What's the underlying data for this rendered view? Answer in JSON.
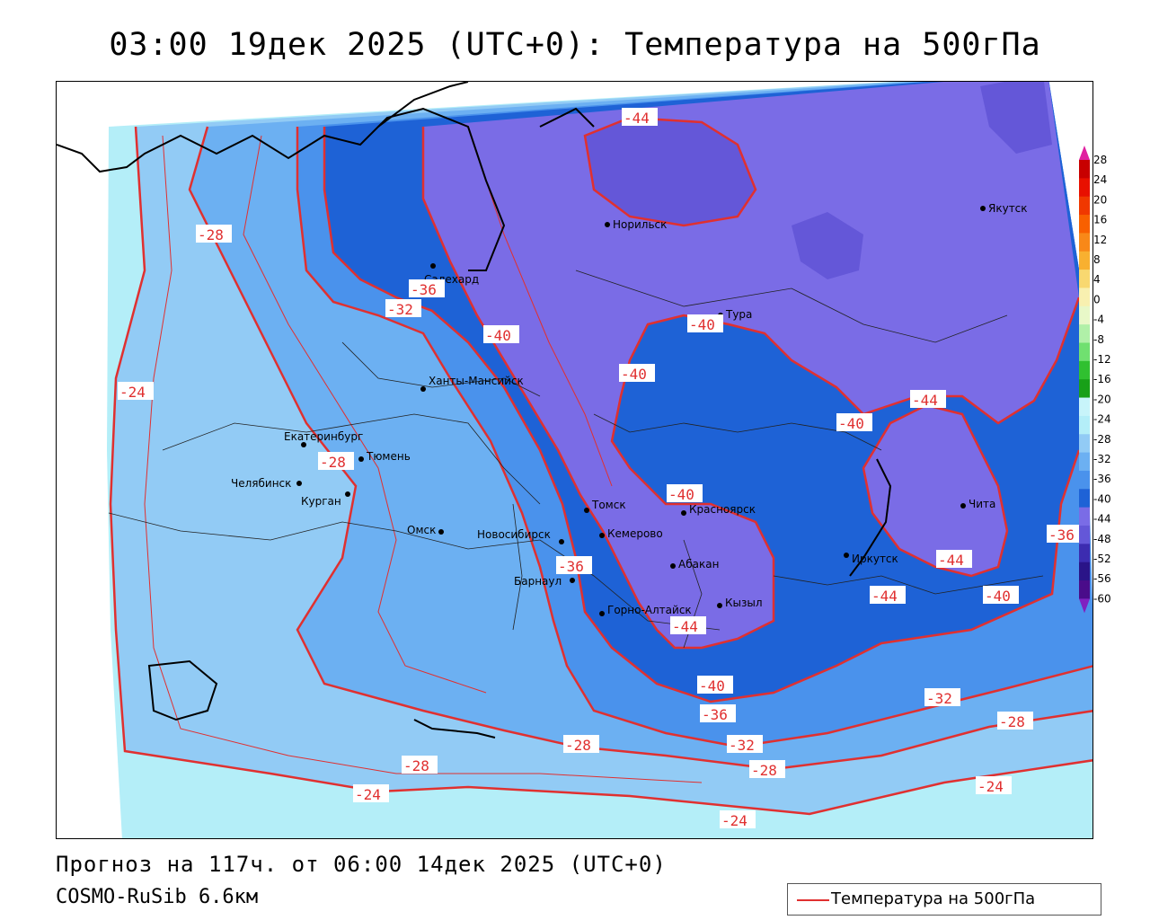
{
  "title": "03:00  19дек 2025 (UTC+0): Температура на 500гПа",
  "footer": {
    "forecast": "Прогноз на 117ч. от 06:00 14дек 2025 (UTC+0)",
    "model": "COSMO-RuSib 6.6км"
  },
  "legend": {
    "label": "Температура на 500гПа",
    "line_color": "#e03030"
  },
  "colors": {
    "band_m24": "#b4eef8",
    "band_m28": "#92cbf5",
    "band_m32": "#6cb0f2",
    "band_m36": "#4a92ec",
    "band_m40": "#1e62d6",
    "band_m44": "#7a6ce6",
    "band_m48": "#6457d8",
    "isotherm": "#e03030"
  },
  "colorbar": {
    "ticks": [
      "28",
      "24",
      "20",
      "16",
      "12",
      "8",
      "4",
      "0",
      "-4",
      "-8",
      "-12",
      "-16",
      "-20",
      "-24",
      "-28",
      "-32",
      "-36",
      "-40",
      "-44",
      "-48",
      "-52",
      "-56",
      "-60"
    ],
    "colors": [
      "#c80000",
      "#e81000",
      "#f03800",
      "#f86000",
      "#f88818",
      "#f8b030",
      "#f8d870",
      "#f8f0b0",
      "#e8f8c8",
      "#b0f0a8",
      "#70e070",
      "#30c030",
      "#18a018",
      "#c8f4fa",
      "#b4eef8",
      "#92cbf5",
      "#6cb0f2",
      "#4a92ec",
      "#1e62d6",
      "#7a6ce6",
      "#6457d8",
      "#3c2cb0",
      "#2a1488",
      "#4a0c8a"
    ]
  },
  "cities": [
    {
      "name": "Норильск"
    },
    {
      "name": "Якутск"
    },
    {
      "name": "Салехард"
    },
    {
      "name": "Тура"
    },
    {
      "name": "Ханты-Мансийск"
    },
    {
      "name": "Екатеринбург"
    },
    {
      "name": "Тюмень"
    },
    {
      "name": "Челябинск"
    },
    {
      "name": "Курган"
    },
    {
      "name": "Омск"
    },
    {
      "name": "Новосибирск"
    },
    {
      "name": "Томск"
    },
    {
      "name": "Кемерово"
    },
    {
      "name": "Красноярск"
    },
    {
      "name": "Барнаул"
    },
    {
      "name": "Абакан"
    },
    {
      "name": "Горно-Алтайск"
    },
    {
      "name": "Кызыл"
    },
    {
      "name": "Иркутск"
    },
    {
      "name": "Чита"
    }
  ],
  "isotherm_labels": [
    {
      "text": "-44"
    },
    {
      "text": "-28"
    },
    {
      "text": "-36"
    },
    {
      "text": "-32"
    },
    {
      "text": "-40"
    },
    {
      "text": "-40"
    },
    {
      "text": "-40"
    },
    {
      "text": "-40"
    },
    {
      "text": "-44"
    },
    {
      "text": "-28"
    },
    {
      "text": "-40"
    },
    {
      "text": "-36"
    },
    {
      "text": "-36"
    },
    {
      "text": "-44"
    },
    {
      "text": "-40"
    },
    {
      "text": "-44"
    },
    {
      "text": "-40"
    },
    {
      "text": "-36"
    },
    {
      "text": "-32"
    },
    {
      "text": "-32"
    },
    {
      "text": "-28"
    },
    {
      "text": "-28"
    },
    {
      "text": "-28"
    },
    {
      "text": "-28"
    },
    {
      "text": "-24"
    },
    {
      "text": "-24"
    },
    {
      "text": "-24"
    },
    {
      "text": "-44"
    },
    {
      "text": "-24"
    }
  ]
}
